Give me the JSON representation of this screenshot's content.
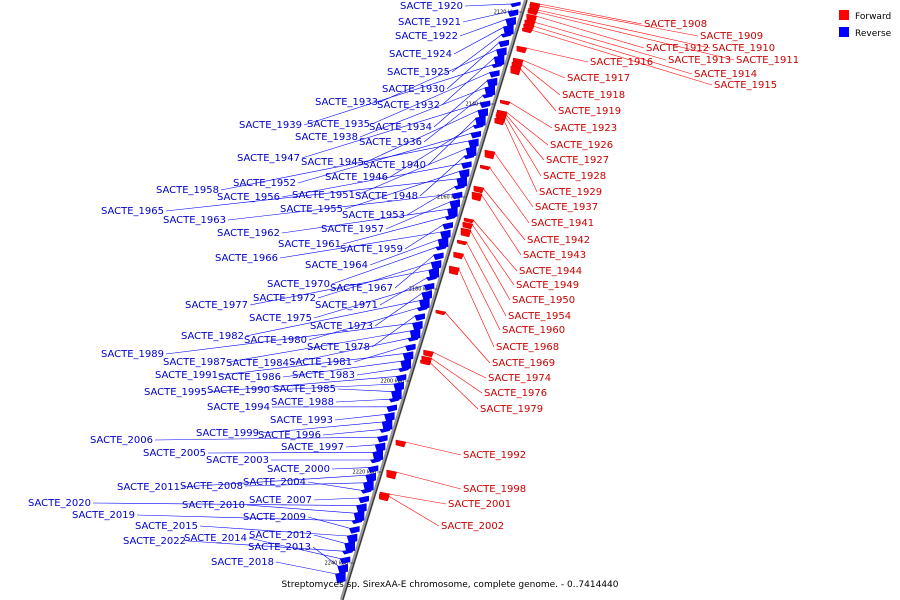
{
  "caption": "Streptomyces sp. SirexAA-E chromosome, complete genome. - 0..7414440",
  "legend": [
    {
      "label": "Forward",
      "color": "#ff0000"
    },
    {
      "label": "Reverse",
      "color": "#0000ff"
    }
  ],
  "ticks": [
    "2120 kbp",
    "2140 kbp",
    "2160 kbp",
    "2180 kbp",
    "2200 kbp",
    "2220 kbp",
    "2240 kbp"
  ],
  "forward_genes": [
    "SACTE_1908",
    "SACTE_1909",
    "SACTE_1912",
    "SACTE_1910",
    "SACTE_1916",
    "SACTE_1913",
    "SACTE_1911",
    "SACTE_1914",
    "SACTE_1917",
    "SACTE_1915",
    "SACTE_1918",
    "SACTE_1919",
    "SACTE_1923",
    "SACTE_1926",
    "SACTE_1927",
    "SACTE_1928",
    "SACTE_1929",
    "SACTE_1937",
    "SACTE_1941",
    "SACTE_1942",
    "SACTE_1943",
    "SACTE_1944",
    "SACTE_1949",
    "SACTE_1950",
    "SACTE_1954",
    "SACTE_1960",
    "SACTE_1968",
    "SACTE_1969",
    "SACTE_1974",
    "SACTE_1976",
    "SACTE_1979",
    "SACTE_1992",
    "SACTE_1998",
    "SACTE_2001",
    "SACTE_2002"
  ],
  "reverse_genes": [
    "SACTE_1920",
    "SACTE_1921",
    "SACTE_1922",
    "SACTE_1924",
    "SACTE_1925",
    "SACTE_1930",
    "SACTE_1933",
    "SACTE_1932",
    "SACTE_1939",
    "SACTE_1935",
    "SACTE_1934",
    "SACTE_1938",
    "SACTE_1936",
    "SACTE_1947",
    "SACTE_1945",
    "SACTE_1940",
    "SACTE_1946",
    "SACTE_1952",
    "SACTE_1958",
    "SACTE_1951",
    "SACTE_1948",
    "SACTE_1956",
    "SACTE_1955",
    "SACTE_1965",
    "SACTE_1953",
    "SACTE_1963",
    "SACTE_1957",
    "SACTE_1962",
    "SACTE_1961",
    "SACTE_1959",
    "SACTE_1966",
    "SACTE_1964",
    "SACTE_1970",
    "SACTE_1967",
    "SACTE_1972",
    "SACTE_1977",
    "SACTE_1971",
    "SACTE_1975",
    "SACTE_1973",
    "SACTE_1982",
    "SACTE_1980",
    "SACTE_1978",
    "SACTE_1989",
    "SACTE_1987",
    "SACTE_1984",
    "SACTE_1981",
    "SACTE_1991",
    "SACTE_1986",
    "SACTE_1983",
    "SACTE_1995",
    "SACTE_1990",
    "SACTE_1985",
    "SACTE_1988",
    "SACTE_1994",
    "SACTE_1993",
    "SACTE_1999",
    "SACTE_1996",
    "SACTE_2006",
    "SACTE_1997",
    "SACTE_2005",
    "SACTE_2003",
    "SACTE_2000",
    "SACTE_2011",
    "SACTE_2008",
    "SACTE_2004",
    "SACTE_2007",
    "SACTE_2020",
    "SACTE_2010",
    "SACTE_2019",
    "SACTE_2009",
    "SACTE_2015",
    "SACTE_2012",
    "SACTE_2022",
    "SACTE_2014",
    "SACTE_2013",
    "SACTE_2018"
  ]
}
